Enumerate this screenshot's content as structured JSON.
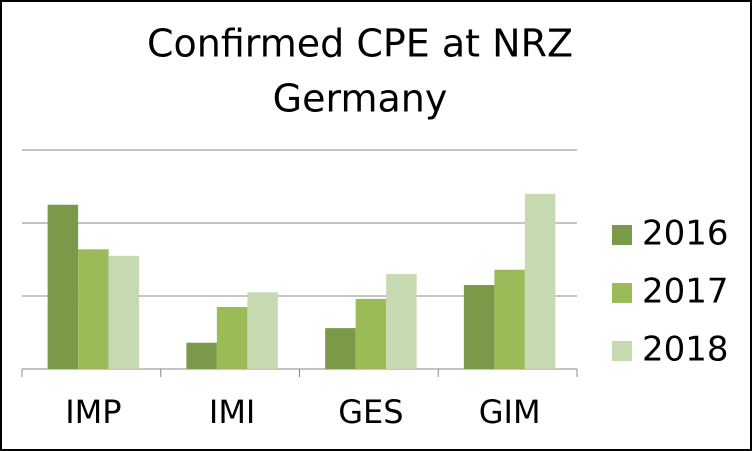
{
  "chart_data": {
    "type": "bar",
    "title": "Confirmed CPE at NRZ",
    "subtitle": "Germany",
    "categories": [
      "IMP",
      "IMI",
      "GES",
      "GIM"
    ],
    "series": [
      {
        "name": "2016",
        "color": "#7a9a4a",
        "values": [
          2.25,
          0.36,
          0.56,
          1.15
        ]
      },
      {
        "name": "2017",
        "color": "#9bbb59",
        "values": [
          1.64,
          0.85,
          0.96,
          1.36
        ]
      },
      {
        "name": "2018",
        "color": "#c7d9b0",
        "values": [
          1.55,
          1.05,
          1.3,
          2.4
        ]
      }
    ],
    "ylim": [
      0,
      3
    ],
    "yticks": [
      0,
      1,
      2,
      3
    ],
    "grid": true,
    "legend": "right"
  }
}
